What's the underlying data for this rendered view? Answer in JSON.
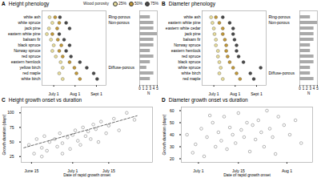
{
  "chart_data": [
    {
      "type": "dot",
      "panel": "A",
      "title": "Height phenology",
      "categories": [
        "white ash",
        "white spruce",
        "jack pine",
        "eastern white pine",
        "balsam fir",
        "black spruce",
        "Norway spruce",
        "red spruce",
        "eastern hemlock",
        "yellow birch",
        "red maple",
        "white birch"
      ],
      "series": [
        {
          "name": "25%",
          "color": "#e8dd9c",
          "values": [
            176,
            180,
            175,
            172,
            178,
            182,
            180,
            185,
            192,
            195,
            190,
            195
          ]
        },
        {
          "name": "50%",
          "color": "#c49a3a",
          "values": [
            184,
            190,
            187,
            180,
            188,
            193,
            190,
            195,
            205,
            212,
            215,
            220
          ]
        },
        {
          "name": "75%",
          "color": "#4a4a4a",
          "values": [
            191,
            200,
            205,
            190,
            197,
            205,
            200,
            207,
            220,
            230,
            240,
            245
          ]
        }
      ],
      "xlim": [
        165,
        258
      ],
      "xticks": [
        {
          "value": 182,
          "label": "July 1"
        },
        {
          "value": 213,
          "label": "Aug 1"
        },
        {
          "value": 244,
          "label": "Sept 1"
        }
      ],
      "legend": "top",
      "legend_title": "Wood porosity",
      "groups": [
        {
          "label": "Ring-porous",
          "from": "white ash"
        },
        {
          "label": "Non-porous",
          "from": "white spruce"
        },
        {
          "label": "Diffuse-porous",
          "from": "yellow birch"
        }
      ],
      "n": {
        "label": "N",
        "values": [
          3,
          4,
          4,
          5,
          4,
          4,
          3,
          4,
          3,
          2,
          4,
          3
        ],
        "xlim": [
          0,
          5
        ],
        "xticks": [
          0,
          1,
          2,
          3,
          4,
          5
        ],
        "color": "#aaaaaa"
      }
    },
    {
      "type": "dot",
      "panel": "B",
      "title": "Diameter phenology",
      "categories": [
        "white ash",
        "eastern white pine",
        "eastern white cedar",
        "jack pine",
        "balsam fir",
        "Norway spruce",
        "eastern hemlock",
        "red spruce",
        "black spruce",
        "white spruce",
        "white birch",
        "red maple"
      ],
      "series": [
        {
          "name": "25%",
          "color": "#e8dd9c",
          "values": [
            178,
            180,
            182,
            183,
            185,
            185,
            188,
            188,
            190,
            192,
            190,
            195
          ]
        },
        {
          "name": "50%",
          "color": "#c49a3a",
          "values": [
            185,
            190,
            195,
            195,
            198,
            200,
            200,
            202,
            205,
            210,
            215,
            220
          ]
        },
        {
          "name": "75%",
          "color": "#4a4a4a",
          "values": [
            195,
            205,
            210,
            210,
            212,
            215,
            215,
            218,
            225,
            250,
            235,
            240
          ]
        }
      ],
      "xlim": [
        165,
        258
      ],
      "xticks": [
        {
          "value": 182,
          "label": "July 1"
        },
        {
          "value": 213,
          "label": "Aug 1"
        },
        {
          "value": 244,
          "label": "Sept 1"
        }
      ],
      "groups": [
        {
          "label": "Ring-porous",
          "from": "white ash"
        },
        {
          "label": "Non-porous",
          "from": "eastern white pine"
        },
        {
          "label": "Diffuse-porous",
          "from": "white birch"
        }
      ],
      "n": {
        "label": "N",
        "values": [
          3,
          5,
          4,
          4,
          4,
          3,
          3,
          4,
          4,
          3,
          3,
          4
        ],
        "xlim": [
          0,
          5
        ],
        "xticks": [
          0,
          1,
          2,
          3,
          4,
          5
        ],
        "color": "#aaaaaa"
      }
    },
    {
      "type": "scatter",
      "panel": "C",
      "title": "Height growth onset vs duration",
      "x": [
        165,
        167,
        168,
        170,
        171,
        172,
        173,
        175,
        176,
        177,
        178,
        180,
        181,
        182,
        183,
        184,
        185,
        186,
        187,
        188,
        189,
        190,
        191,
        192,
        193,
        195,
        196,
        198,
        200,
        203,
        206,
        170,
        178
      ],
      "y": [
        45,
        30,
        55,
        40,
        60,
        35,
        50,
        55,
        42,
        65,
        48,
        58,
        38,
        62,
        70,
        52,
        45,
        75,
        60,
        68,
        55,
        80,
        72,
        50,
        85,
        65,
        78,
        90,
        70,
        100,
        88,
        25,
        30
      ],
      "xlim": [
        162,
        213
      ],
      "xticks": [
        {
          "value": 166,
          "label": "June 15"
        },
        {
          "value": 182,
          "label": "July 1"
        },
        {
          "value": 196,
          "label": "July 15"
        }
      ],
      "ylim": [
        15,
        110
      ],
      "yticks": [
        25,
        50,
        75,
        100
      ],
      "xlabel": "Date of rapid growth onset",
      "ylabel": "Growth duration (days)",
      "color": "#888888",
      "marker": "open",
      "trend": {
        "x": [
          163,
          207
        ],
        "y": [
          40,
          95
        ],
        "line_style": "dashed",
        "color": "#444444"
      }
    },
    {
      "type": "scatter",
      "panel": "D",
      "title": "Diameter growth onset vs duration",
      "x": [
        178,
        180,
        181,
        183,
        184,
        185,
        187,
        188,
        189,
        190,
        191,
        192,
        193,
        194,
        195,
        196,
        197,
        198,
        199,
        200,
        201,
        202,
        203,
        204,
        205,
        206,
        207,
        208,
        210,
        212,
        214,
        216,
        218,
        209,
        186
      ],
      "y": [
        40,
        25,
        32,
        45,
        22,
        38,
        50,
        30,
        42,
        35,
        55,
        28,
        46,
        40,
        33,
        58,
        44,
        38,
        50,
        26,
        48,
        36,
        52,
        42,
        30,
        60,
        45,
        38,
        55,
        48,
        40,
        52,
        33,
        24,
        56
      ],
      "xlim": [
        176,
        222
      ],
      "xticks": [
        {
          "value": 182,
          "label": "July 1"
        },
        {
          "value": 196,
          "label": "July 15"
        },
        {
          "value": 213,
          "label": "Aug 1"
        }
      ],
      "ylim": [
        17,
        63
      ],
      "yticks": [
        20,
        30,
        40,
        50,
        60
      ],
      "xlabel": "Date of rapid growth onset",
      "ylabel": "Growth duration (days)",
      "color": "#888888",
      "marker": "open"
    }
  ]
}
